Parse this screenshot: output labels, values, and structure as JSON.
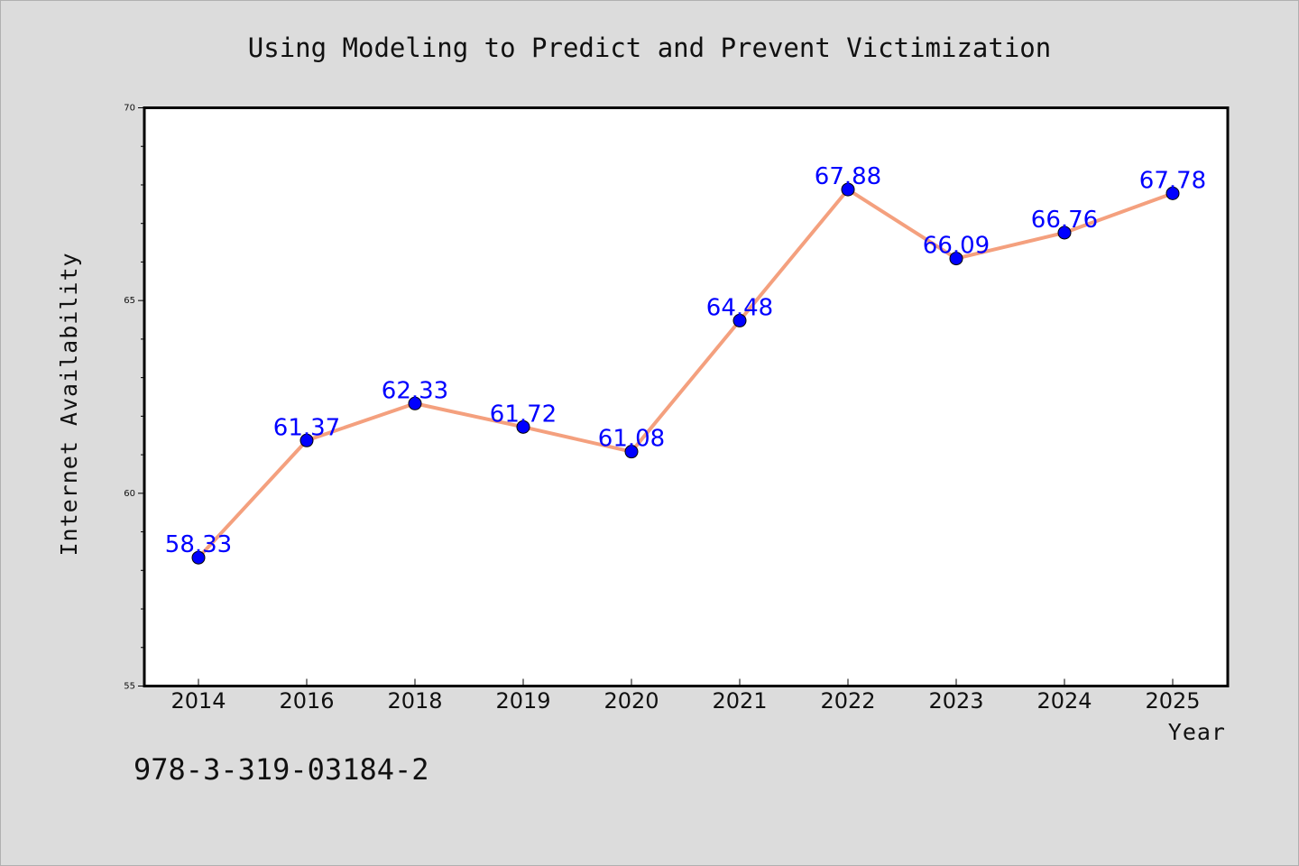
{
  "footer_text": "978-3-319-03184-2",
  "chart_data": {
    "type": "line",
    "title": "Using Modeling to Predict and Prevent Victimization",
    "xlabel": "Year",
    "ylabel": "Internet Availability",
    "categories": [
      "2014",
      "2016",
      "2018",
      "2019",
      "2020",
      "2021",
      "2022",
      "2023",
      "2024",
      "2025"
    ],
    "values": [
      58.33,
      61.37,
      62.33,
      61.72,
      61.08,
      64.48,
      67.88,
      66.09,
      66.76,
      67.78
    ],
    "data_labels": [
      "58.33",
      "61.37",
      "62.33",
      "61.72",
      "61.08",
      "64.48",
      "67.88",
      "66.09",
      "66.76",
      "67.78"
    ],
    "ylim": [
      55,
      70
    ],
    "yticks": [
      55,
      60,
      65,
      70
    ],
    "ytick_labels": [
      "55",
      "60",
      "65",
      "70"
    ],
    "grid": false,
    "legend": "none",
    "colors": {
      "line": "#f4a07e",
      "marker": "#0000ff",
      "data_label": "#0000ff",
      "plot_background": "#ffffff",
      "figure_background": "#dcdcdc"
    }
  }
}
